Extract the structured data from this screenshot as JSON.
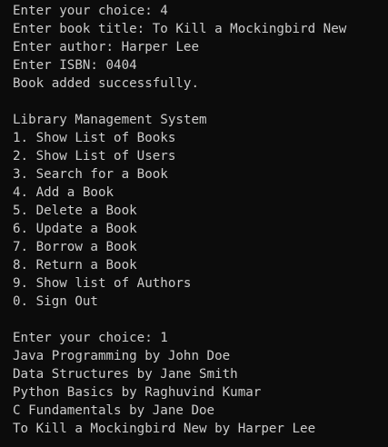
{
  "lines": [
    "Enter your choice: 4",
    "Enter book title: To Kill a Mockingbird New",
    "Enter author: Harper Lee",
    "Enter ISBN: 0404",
    "Book added successfully.",
    null,
    "Library Management System",
    "1. Show List of Books",
    "2. Show List of Users",
    "3. Search for a Book",
    "4. Add a Book",
    "5. Delete a Book",
    "6. Update a Book",
    "7. Borrow a Book",
    "8. Return a Book",
    "9. Show list of Authors",
    "0. Sign Out",
    null,
    "Enter your choice: 1",
    "Java Programming by John Doe",
    "Data Structures by Jane Smith",
    "Python Basics by Raghuvind Kumar",
    "C Fundamentals by Jane Doe",
    "To Kill a Mockingbird New by Harper Lee"
  ]
}
